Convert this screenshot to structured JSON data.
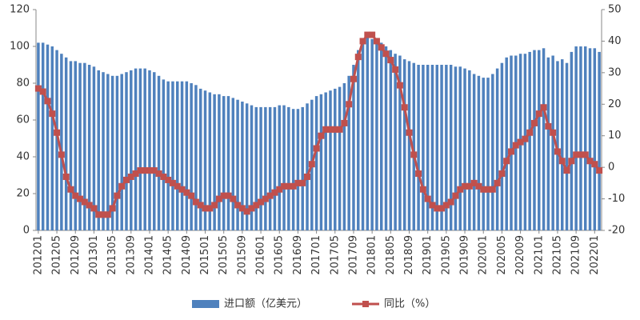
{
  "chart_data": {
    "type": "bar_line",
    "categories": [
      "201201",
      null,
      null,
      null,
      "201205",
      null,
      null,
      null,
      "201209",
      null,
      null,
      null,
      "201301",
      null,
      null,
      null,
      "201305",
      null,
      null,
      null,
      "201309",
      null,
      null,
      null,
      "201401",
      null,
      null,
      null,
      "201405",
      null,
      null,
      null,
      "201409",
      null,
      null,
      null,
      "201501",
      null,
      null,
      null,
      "201505",
      null,
      null,
      null,
      "201509",
      null,
      null,
      null,
      "201601",
      null,
      null,
      null,
      "201605",
      null,
      null,
      null,
      "201609",
      null,
      null,
      null,
      "201701",
      null,
      null,
      null,
      "201705",
      null,
      null,
      null,
      "201709",
      null,
      null,
      null,
      "201801",
      null,
      null,
      null,
      "201805",
      null,
      null,
      null,
      "201809",
      null,
      null,
      null,
      "201901",
      null,
      null,
      null,
      "201905",
      null,
      null,
      null,
      "201909",
      null,
      null,
      null,
      "202001",
      null,
      null,
      null,
      "202005",
      null,
      null,
      null,
      "202009",
      null,
      null,
      null,
      "202101",
      null,
      null,
      null,
      "202105",
      null,
      null,
      null,
      "202109",
      null,
      null,
      null,
      "202201",
      null
    ],
    "series": [
      {
        "name": "进口额（亿美元）",
        "color": "#4f81bd",
        "type": "bar",
        "axis": "y",
        "values": [
          102,
          102,
          101,
          100,
          98,
          96,
          94,
          92,
          92,
          91,
          91,
          90,
          89,
          87,
          86,
          85,
          84,
          84,
          85,
          86,
          87,
          88,
          88,
          88,
          87,
          86,
          84,
          82,
          81,
          81,
          81,
          81,
          81,
          80,
          79,
          77,
          76,
          75,
          74,
          74,
          73,
          73,
          72,
          71,
          70,
          69,
          68,
          67,
          67,
          67,
          67,
          67,
          68,
          68,
          67,
          66,
          66,
          67,
          69,
          71,
          73,
          74,
          75,
          76,
          77,
          78,
          80,
          84,
          90,
          98,
          103,
          105,
          104,
          103,
          102,
          100,
          98,
          96,
          95,
          93,
          92,
          91,
          90,
          90,
          90,
          90,
          90,
          90,
          90,
          90,
          89,
          89,
          88,
          87,
          85,
          84,
          83,
          83,
          85,
          88,
          91,
          94,
          95,
          95,
          96,
          96,
          97,
          98,
          98,
          99,
          94,
          95,
          92,
          93,
          91,
          97,
          100,
          100,
          100,
          99,
          99,
          97
        ]
      },
      {
        "name": "同比（%）",
        "color": "#c0504d",
        "type": "line",
        "axis": "y2",
        "values": [
          25,
          24,
          21,
          17,
          11,
          4,
          -3,
          -7,
          -9,
          -10,
          -11,
          -12,
          -13,
          -15,
          -15,
          -15,
          -13,
          -9,
          -6,
          -4,
          -3,
          -2,
          -1,
          -1,
          -1,
          -1,
          -2,
          -3,
          -4,
          -5,
          -6,
          -7,
          -8,
          -9,
          -11,
          -12,
          -13,
          -13,
          -12,
          -10,
          -9,
          -9,
          -10,
          -12,
          -13,
          -14,
          -13,
          -12,
          -11,
          -10,
          -9,
          -8,
          -7,
          -6,
          -6,
          -6,
          -5,
          -5,
          -3,
          1,
          6,
          10,
          12,
          12,
          12,
          12,
          14,
          20,
          28,
          35,
          40,
          42,
          42,
          40,
          38,
          36,
          34,
          31,
          26,
          19,
          11,
          4,
          -2,
          -7,
          -10,
          -12,
          -13,
          -13,
          -12,
          -11,
          -9,
          -7,
          -6,
          -6,
          -5,
          -6,
          -7,
          -7,
          -7,
          -5,
          -2,
          2,
          5,
          7,
          8,
          9,
          11,
          14,
          17,
          19,
          13,
          11,
          5,
          2,
          -1,
          2,
          4,
          4,
          4,
          2,
          1,
          -1
        ]
      }
    ],
    "ylim": [
      0,
      120
    ],
    "yticks": [
      0,
      20,
      40,
      60,
      80,
      100,
      120
    ],
    "y2lim": [
      -20,
      50
    ],
    "y2ticks": [
      -20,
      -10,
      0,
      10,
      20,
      30,
      40,
      50
    ],
    "legend": "bottom"
  }
}
